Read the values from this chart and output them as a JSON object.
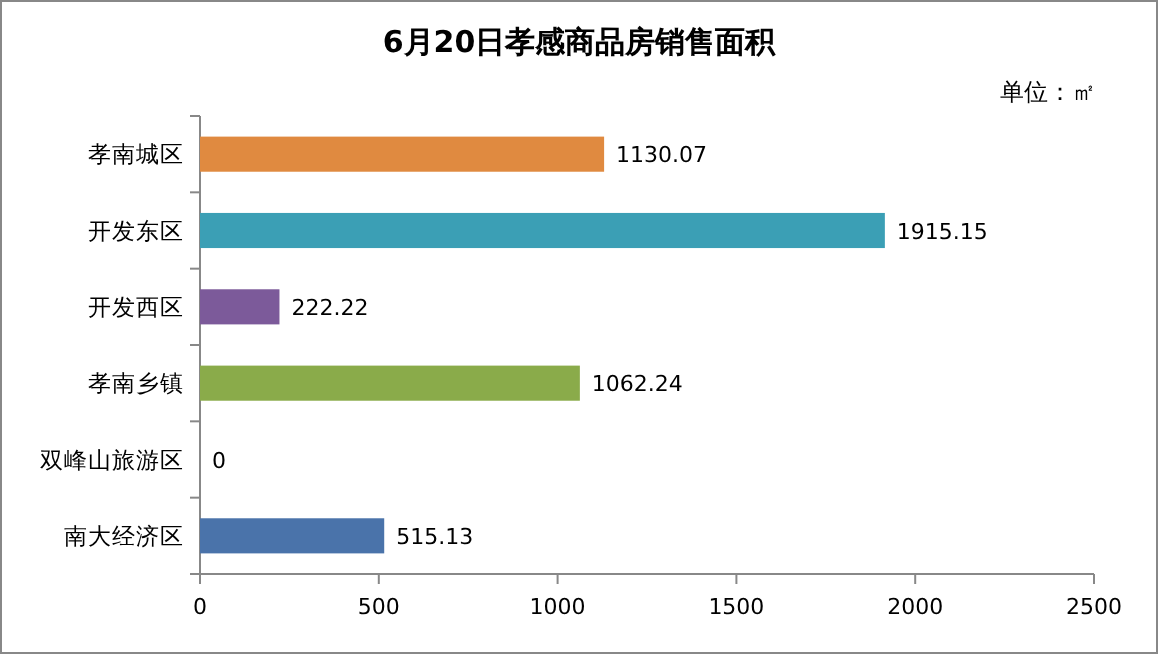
{
  "chart_data": {
    "type": "bar",
    "orientation": "horizontal",
    "title": "6月20日孝感商品房销售面积",
    "annotations": [
      "单位：㎡"
    ],
    "categories": [
      "孝南城区",
      "开发东区",
      "开发西区",
      "孝南乡镇",
      "双峰山旅游区",
      "南大经济区"
    ],
    "values": [
      1130.07,
      1915.15,
      222.22,
      1062.24,
      0,
      515.13
    ],
    "colors": [
      "#e08a40",
      "#3b9fb5",
      "#7c5a9a",
      "#8aab4a",
      "#c0504d",
      "#4a73aa"
    ],
    "value_labels": [
      "1130.07",
      "1915.15",
      "222.22",
      "1062.24",
      "0",
      "515.13"
    ],
    "xlim": [
      0,
      2500
    ],
    "xticks": [
      0,
      500,
      1000,
      1500,
      2000,
      2500
    ],
    "grid": false
  }
}
